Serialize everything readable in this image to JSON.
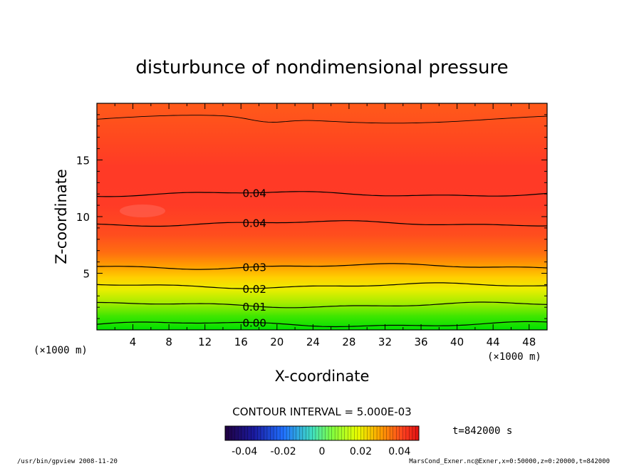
{
  "chart_data": {
    "type": "heatmap",
    "title": "disturbunce of nondimensional pressure",
    "xlabel": "X-coordinate",
    "ylabel": "Z-coordinate",
    "x_unit": "(×1000 m)",
    "z_unit": "(×1000 m)",
    "xlim": [
      0,
      50
    ],
    "ylim": [
      0,
      20
    ],
    "x_ticks": [
      4,
      8,
      12,
      16,
      20,
      24,
      28,
      32,
      36,
      40,
      44,
      48
    ],
    "y_ticks": [
      5,
      10,
      15
    ],
    "contour_interval_text": "CONTOUR INTERVAL = 5.000E-03",
    "contour_lines": [
      {
        "label": "0.00",
        "level": 0.0,
        "z": 0.5
      },
      {
        "label": "0.01",
        "level": 0.01,
        "z": 2.2
      },
      {
        "label": "0.02",
        "level": 0.02,
        "z": 3.9
      },
      {
        "label": "0.03",
        "level": 0.03,
        "z": 5.6
      },
      {
        "label": "0.04",
        "level": 0.04,
        "z": 9.4
      },
      {
        "label": "0.04",
        "level": 0.04,
        "z": 12.0
      }
    ],
    "colorbar": {
      "range": [
        -0.05,
        0.05
      ],
      "ticks": [
        "-0.04",
        "-0.02",
        "0",
        "0.02",
        "0.04"
      ]
    },
    "time_label": "t=842000 s",
    "footer_left": "/usr/bin/gpview   2008-11-20",
    "footer_right": "MarsCond_Exner.nc@Exner,x=0:50000,z=0:20000,t=842000"
  }
}
